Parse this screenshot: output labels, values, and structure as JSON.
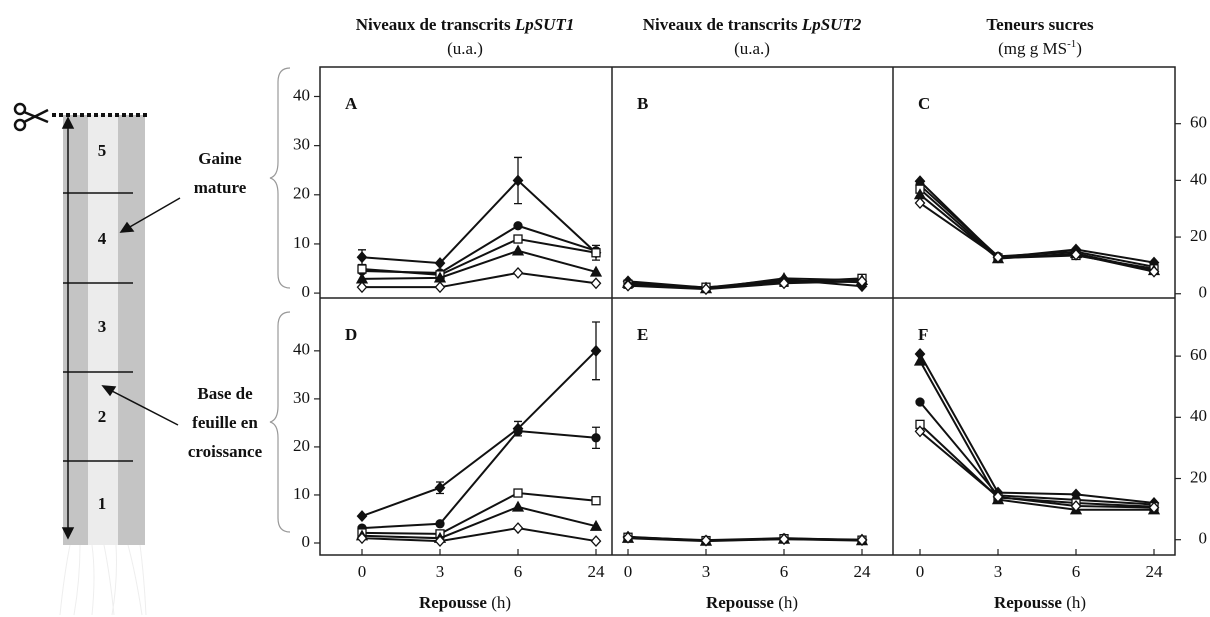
{
  "columns": [
    {
      "text": "Niveaux de transcrits",
      "gene": "LpSUT1",
      "unit": "(u.a.)"
    },
    {
      "text": "Niveaux de transcrits",
      "gene": "LpSUT2",
      "unit": "(u.a.)"
    },
    {
      "text": "Teneurs sucres",
      "unit": "(mg g MS",
      "unit_sup": "-1",
      "unit_end": ")"
    }
  ],
  "diagram": {
    "segments": [
      "1",
      "2",
      "3",
      "4",
      "5"
    ],
    "labels": [
      {
        "lines": [
          "Gaine",
          "mature"
        ]
      },
      {
        "lines": [
          "Base de",
          "feuille en",
          "croissance"
        ]
      }
    ]
  },
  "chart_data": [
    {
      "type": "line",
      "label": "A",
      "categories": [
        null,
        null,
        null,
        null
      ],
      "ylim": [
        -1,
        46
      ],
      "yticks": [
        0,
        10,
        20,
        30,
        40
      ],
      "yaxis_side": "left",
      "series": [
        {
          "marker": "diamond",
          "filled": true,
          "color": "#111111",
          "values": [
            7.3,
            6.1,
            22.9,
            8.2
          ],
          "errors": [
            1.5,
            null,
            4.7,
            1.5
          ]
        },
        {
          "marker": "circle",
          "filled": true,
          "color": "#111111",
          "values": [
            4.5,
            4.1,
            13.7,
            8.6
          ]
        },
        {
          "marker": "square",
          "filled": false,
          "color": "#111111",
          "values": [
            4.9,
            3.7,
            11,
            8.2
          ]
        },
        {
          "marker": "triangle",
          "filled": true,
          "color": "#111111",
          "values": [
            2.9,
            3.1,
            8.6,
            4.3
          ]
        },
        {
          "marker": "diamond",
          "filled": false,
          "color": "#111111",
          "values": [
            1.2,
            1.2,
            4.1,
            2.0
          ]
        }
      ]
    },
    {
      "type": "line",
      "label": "B",
      "categories": [
        null,
        null,
        null,
        null
      ],
      "ylim": [
        -1,
        46
      ],
      "series": [
        {
          "marker": "diamond",
          "filled": true,
          "color": "#111111",
          "values": [
            2.4,
            1.1,
            2.8,
            1.4
          ]
        },
        {
          "marker": "circle",
          "filled": true,
          "color": "#111111",
          "values": [
            2.2,
            1.0,
            2.6,
            2.2
          ]
        },
        {
          "marker": "square",
          "filled": false,
          "color": "#111111",
          "values": [
            1.8,
            1.2,
            2.2,
            3.0
          ]
        },
        {
          "marker": "triangle",
          "filled": true,
          "color": "#111111",
          "values": [
            2.0,
            0.9,
            3.0,
            2.6
          ]
        },
        {
          "marker": "diamond",
          "filled": false,
          "color": "#111111",
          "values": [
            1.5,
            0.8,
            2.0,
            2.4
          ]
        }
      ]
    },
    {
      "type": "line",
      "label": "C",
      "categories": [
        null,
        null,
        null,
        null
      ],
      "ylim": [
        -1.5,
        80
      ],
      "yticks": [
        0,
        20,
        40,
        60
      ],
      "yaxis_side": "right",
      "series": [
        {
          "marker": "diamond",
          "filled": true,
          "color": "#111111",
          "values": [
            39.7,
            12.8,
            15.6,
            11
          ]
        },
        {
          "marker": "circle",
          "filled": true,
          "color": "#111111",
          "values": [
            38.3,
            13.2,
            14.8,
            9.5
          ]
        },
        {
          "marker": "square",
          "filled": false,
          "color": "#111111",
          "values": [
            36.9,
            12.6,
            13.5,
            8.8
          ]
        },
        {
          "marker": "triangle",
          "filled": true,
          "color": "#111111",
          "values": [
            35,
            12.4,
            14.2,
            8.2
          ]
        },
        {
          "marker": "diamond",
          "filled": false,
          "color": "#111111",
          "values": [
            32,
            12.9,
            13.8,
            7.8
          ]
        }
      ]
    },
    {
      "type": "line",
      "label": "D",
      "categories": [
        "0",
        "3",
        "6",
        "24"
      ],
      "ylim": [
        -2.5,
        51
      ],
      "yticks": [
        0,
        10,
        20,
        30,
        40
      ],
      "yaxis_side": "left",
      "series": [
        {
          "marker": "diamond",
          "filled": true,
          "color": "#111111",
          "values": [
            5.6,
            11.5,
            23.8,
            40
          ],
          "errors": [
            null,
            1.2,
            1.5,
            6
          ]
        },
        {
          "marker": "circle",
          "filled": true,
          "color": "#111111",
          "values": [
            3.1,
            4.0,
            23.3,
            21.9
          ],
          "errors": [
            null,
            null,
            null,
            2.2
          ]
        },
        {
          "marker": "square",
          "filled": false,
          "color": "#111111",
          "values": [
            2.1,
            1.9,
            10.4,
            8.8
          ]
        },
        {
          "marker": "triangle",
          "filled": true,
          "color": "#111111",
          "values": [
            1.5,
            1.0,
            7.5,
            3.5
          ]
        },
        {
          "marker": "diamond",
          "filled": false,
          "color": "#111111",
          "values": [
            1.0,
            0.4,
            3.1,
            0.4
          ]
        }
      ]
    },
    {
      "type": "line",
      "label": "E",
      "categories": [
        "0",
        "3",
        "6",
        "24"
      ],
      "ylim": [
        -2.5,
        51
      ],
      "series": [
        {
          "marker": "diamond",
          "filled": true,
          "color": "#111111",
          "values": [
            1.3,
            0.5,
            0.9,
            0.7
          ]
        },
        {
          "marker": "circle",
          "filled": true,
          "color": "#111111",
          "values": [
            1.2,
            0.6,
            1.0,
            0.6
          ]
        },
        {
          "marker": "square",
          "filled": false,
          "color": "#111111",
          "values": [
            1.2,
            0.5,
            0.9,
            0.6
          ]
        },
        {
          "marker": "triangle",
          "filled": true,
          "color": "#111111",
          "values": [
            1.0,
            0.4,
            0.8,
            0.5
          ]
        },
        {
          "marker": "diamond",
          "filled": false,
          "color": "#111111",
          "values": [
            1.1,
            0.5,
            0.8,
            0.6
          ]
        }
      ]
    },
    {
      "type": "line",
      "label": "F",
      "categories": [
        "0",
        "3",
        "6",
        "24"
      ],
      "ylim": [
        -5,
        79
      ],
      "yticks": [
        0,
        20,
        40,
        60
      ],
      "yaxis_side": "right",
      "series": [
        {
          "marker": "diamond",
          "filled": true,
          "color": "#111111",
          "values": [
            60.7,
            15.4,
            14.8,
            12
          ]
        },
        {
          "marker": "circle",
          "filled": true,
          "color": "#111111",
          "values": [
            45,
            14.5,
            13,
            11.5
          ]
        },
        {
          "marker": "square",
          "filled": false,
          "color": "#111111",
          "values": [
            37.7,
            13.8,
            12,
            10.8
          ]
        },
        {
          "marker": "triangle",
          "filled": true,
          "color": "#111111",
          "values": [
            58.4,
            13.1,
            9.8,
            9.8
          ]
        },
        {
          "marker": "diamond",
          "filled": false,
          "color": "#111111",
          "values": [
            35.4,
            14,
            11,
            10.5
          ]
        }
      ]
    }
  ],
  "xlabel": "Repousse",
  "xunit": "(h)"
}
